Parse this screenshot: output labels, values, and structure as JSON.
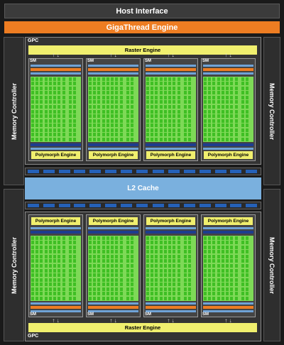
{
  "host_interface": "Host Interface",
  "gigathread_engine": "GigaThread Engine",
  "memory_controller": "Memory Controller",
  "gpc_label": "GPC",
  "raster_engine": "Raster Engine",
  "sm_label": "SM",
  "polymorph_engine": "Polymorph Engine",
  "l2_cache": "L2 Cache",
  "colors": {
    "background": "#1a1a1a",
    "gigathread": "#ee7d22",
    "raster": "#f0ef6e",
    "cuda_core": "#3fbf24",
    "l2_cache": "#7ab0de",
    "load_store": "#1d3c8f"
  }
}
